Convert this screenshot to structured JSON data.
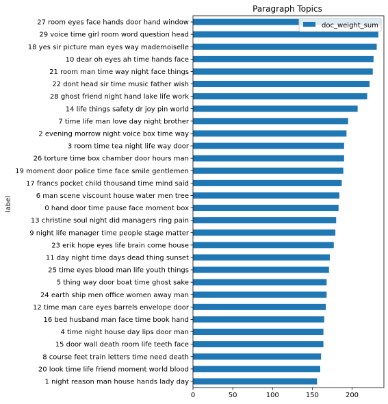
{
  "chart_data": {
    "type": "bar",
    "orientation": "horizontal",
    "title": "Paragraph Topics",
    "xlabel": "",
    "ylabel": "label",
    "xlim": [
      0,
      240
    ],
    "xticks": [
      0,
      50,
      100,
      150,
      200
    ],
    "grid": false,
    "legend": {
      "position": "top-right",
      "entries": [
        "doc_weight_sum"
      ]
    },
    "colors": {
      "bar": "#1f77b4"
    },
    "categories": [
      "27 room eyes face hands door hand window",
      "29 voice time girl room word question head",
      "18 yes sir picture man eyes way mademoiselle",
      "10 dear oh eyes ah time hands face",
      "21 room man time way night face things",
      "22 dont head sir time music father wish",
      "28 ghost friend night hand lake life work",
      "14 life things safety dr joy pin world",
      "7 time life man love day night brother",
      "2 evening morrow night voice box time way",
      "3 room time tea night life way door",
      "26 torture time box chamber door hours man",
      "19 moment door police time face smile gentlemen",
      "17 francs pocket child thousand time mind said",
      "6 man scene viscount house water men tree",
      "0 hand door time pause face moment box",
      "13 christine soul night did managers ring pain",
      "9 night life manager time people stage matter",
      "23 erik hope eyes life brain come house",
      "11 day night time days dead thing sunset",
      "25 time eyes blood man life youth things",
      "5 thing way door boat time ghost sake",
      "24 earth ship men office women away man",
      "12 time man care eyes barrels envelope door",
      "16 bed husband man face time book hand",
      "4 time night house day lips door man",
      "15 door wall death room life teeth face",
      "8 course feet train letters time need death",
      "20 look time life friend moment world blood",
      "1 night reason man house hands lady day"
    ],
    "series": [
      {
        "name": "doc_weight_sum",
        "values": [
          236,
          233,
          231,
          227,
          226,
          222,
          219,
          207,
          195,
          193,
          190,
          190,
          189,
          187,
          184,
          183,
          180,
          179,
          177,
          172,
          171,
          168,
          168,
          167,
          165,
          164,
          164,
          161,
          160,
          156
        ]
      }
    ]
  }
}
